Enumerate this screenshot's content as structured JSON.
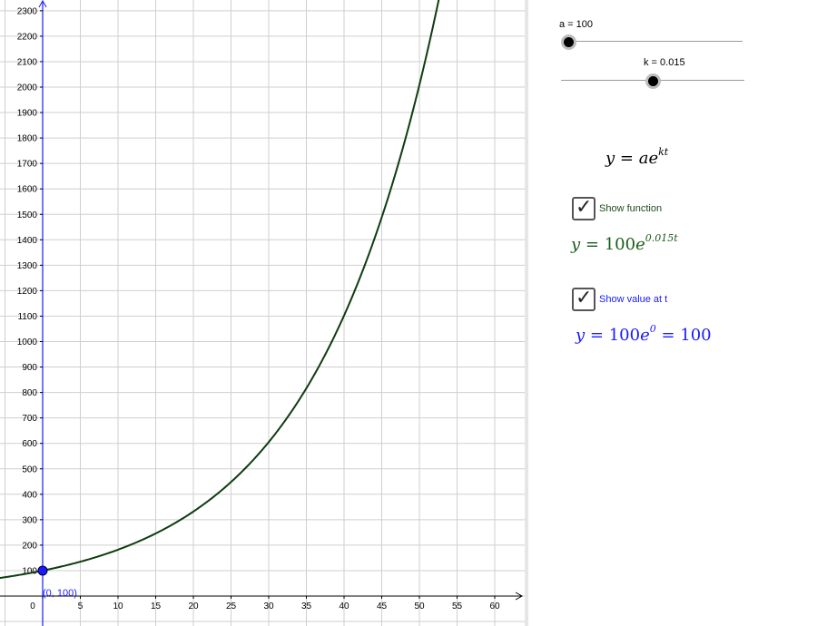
{
  "sliders": {
    "a": {
      "label": "a = 100",
      "value": 100
    },
    "k": {
      "label": "k = 0.015",
      "value": 0.015
    }
  },
  "formulas": {
    "general": {
      "lhs": "y",
      "base": "ae",
      "exponent": "kt"
    },
    "function": {
      "lhs": "y",
      "coeff": "100",
      "base": "e",
      "exponent": "0.015t"
    },
    "value": {
      "lhs": "y",
      "coeff": "100",
      "base": "e",
      "exponent": "0",
      "result": "100"
    }
  },
  "checkboxes": {
    "show_function": {
      "label": "Show function",
      "checked": true
    },
    "show_value": {
      "label": "Show value at t",
      "checked": true
    }
  },
  "colors": {
    "curve": "#0f3c0f",
    "function_text": "#1a5c1a",
    "value_text": "#1a1aff",
    "point": "#1a1aff",
    "grid": "#cfcfcf",
    "axis": "#000000",
    "y_axis": "#1a1aff"
  },
  "point": {
    "label": "(0, 100)",
    "t": 0,
    "y": 100
  },
  "chart_data": {
    "type": "line",
    "series": [
      {
        "function": "100*e^(0.015t)",
        "a": 100,
        "k": 0.015
      }
    ],
    "xlim": [
      -6,
      63
    ],
    "ylim": [
      -100,
      2330
    ],
    "x_ticks": [
      0,
      5,
      10,
      15,
      20,
      25,
      30,
      35,
      40,
      45,
      50,
      55,
      60
    ],
    "y_ticks": [
      100,
      200,
      300,
      400,
      500,
      600,
      700,
      800,
      900,
      1000,
      1100,
      1200,
      1300,
      1400,
      1500,
      1600,
      1700,
      1800,
      1900,
      2000,
      2100,
      2200,
      2300
    ],
    "grid": true
  }
}
